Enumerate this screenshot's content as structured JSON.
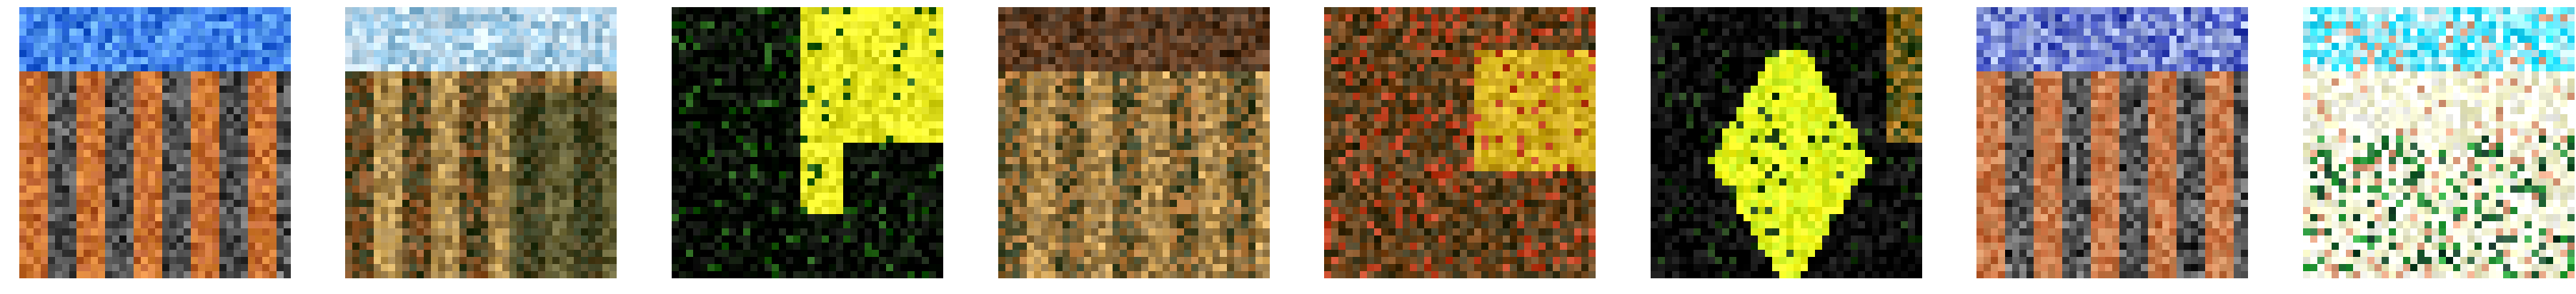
{
  "figure": {
    "samples": [
      {
        "id": "sample-1",
        "palette": [
          "#1e5bd6",
          "#6ab0ff",
          "#b4582a",
          "#e08a3a",
          "#2a2a2a",
          "#c9c9c9"
        ],
        "motif": "striped"
      },
      {
        "id": "sample-2",
        "palette": [
          "#e0eef8",
          "#7fb6d8",
          "#9a5a2a",
          "#2a3a1e",
          "#d8b060",
          "#3a2a20"
        ],
        "motif": "striped-fade"
      },
      {
        "id": "sample-3",
        "palette": [
          "#000000",
          "#0a1a05",
          "#1d5a10",
          "#d6d61a",
          "#ffff30",
          "#804010"
        ],
        "motif": "dark-yellow"
      },
      {
        "id": "sample-4",
        "palette": [
          "#7a4a2a",
          "#3a2a1a",
          "#c08040",
          "#2a3a20",
          "#e0b060",
          "#1a1a1a"
        ],
        "motif": "striped-brown"
      },
      {
        "id": "sample-5",
        "palette": [
          "#8a5020",
          "#303018",
          "#e0c020",
          "#c04020",
          "#5a6a2a",
          "#1a1a10"
        ],
        "motif": "mixed-yellow"
      },
      {
        "id": "sample-6",
        "palette": [
          "#050505",
          "#1a3a10",
          "#ffff20",
          "#6ad020",
          "#c08020",
          "#0f0f0f"
        ],
        "motif": "dark-yellow-center"
      },
      {
        "id": "sample-7",
        "palette": [
          "#2a3ab0",
          "#b8c8f0",
          "#c06030",
          "#d09060",
          "#202020",
          "#f0f0f0"
        ],
        "motif": "striped-blue"
      },
      {
        "id": "sample-8",
        "palette": [
          "#00d8ff",
          "#ffffff",
          "#f0f0c0",
          "#30b040",
          "#1a3a30",
          "#e0a080"
        ],
        "motif": "bright-cyan"
      }
    ]
  }
}
